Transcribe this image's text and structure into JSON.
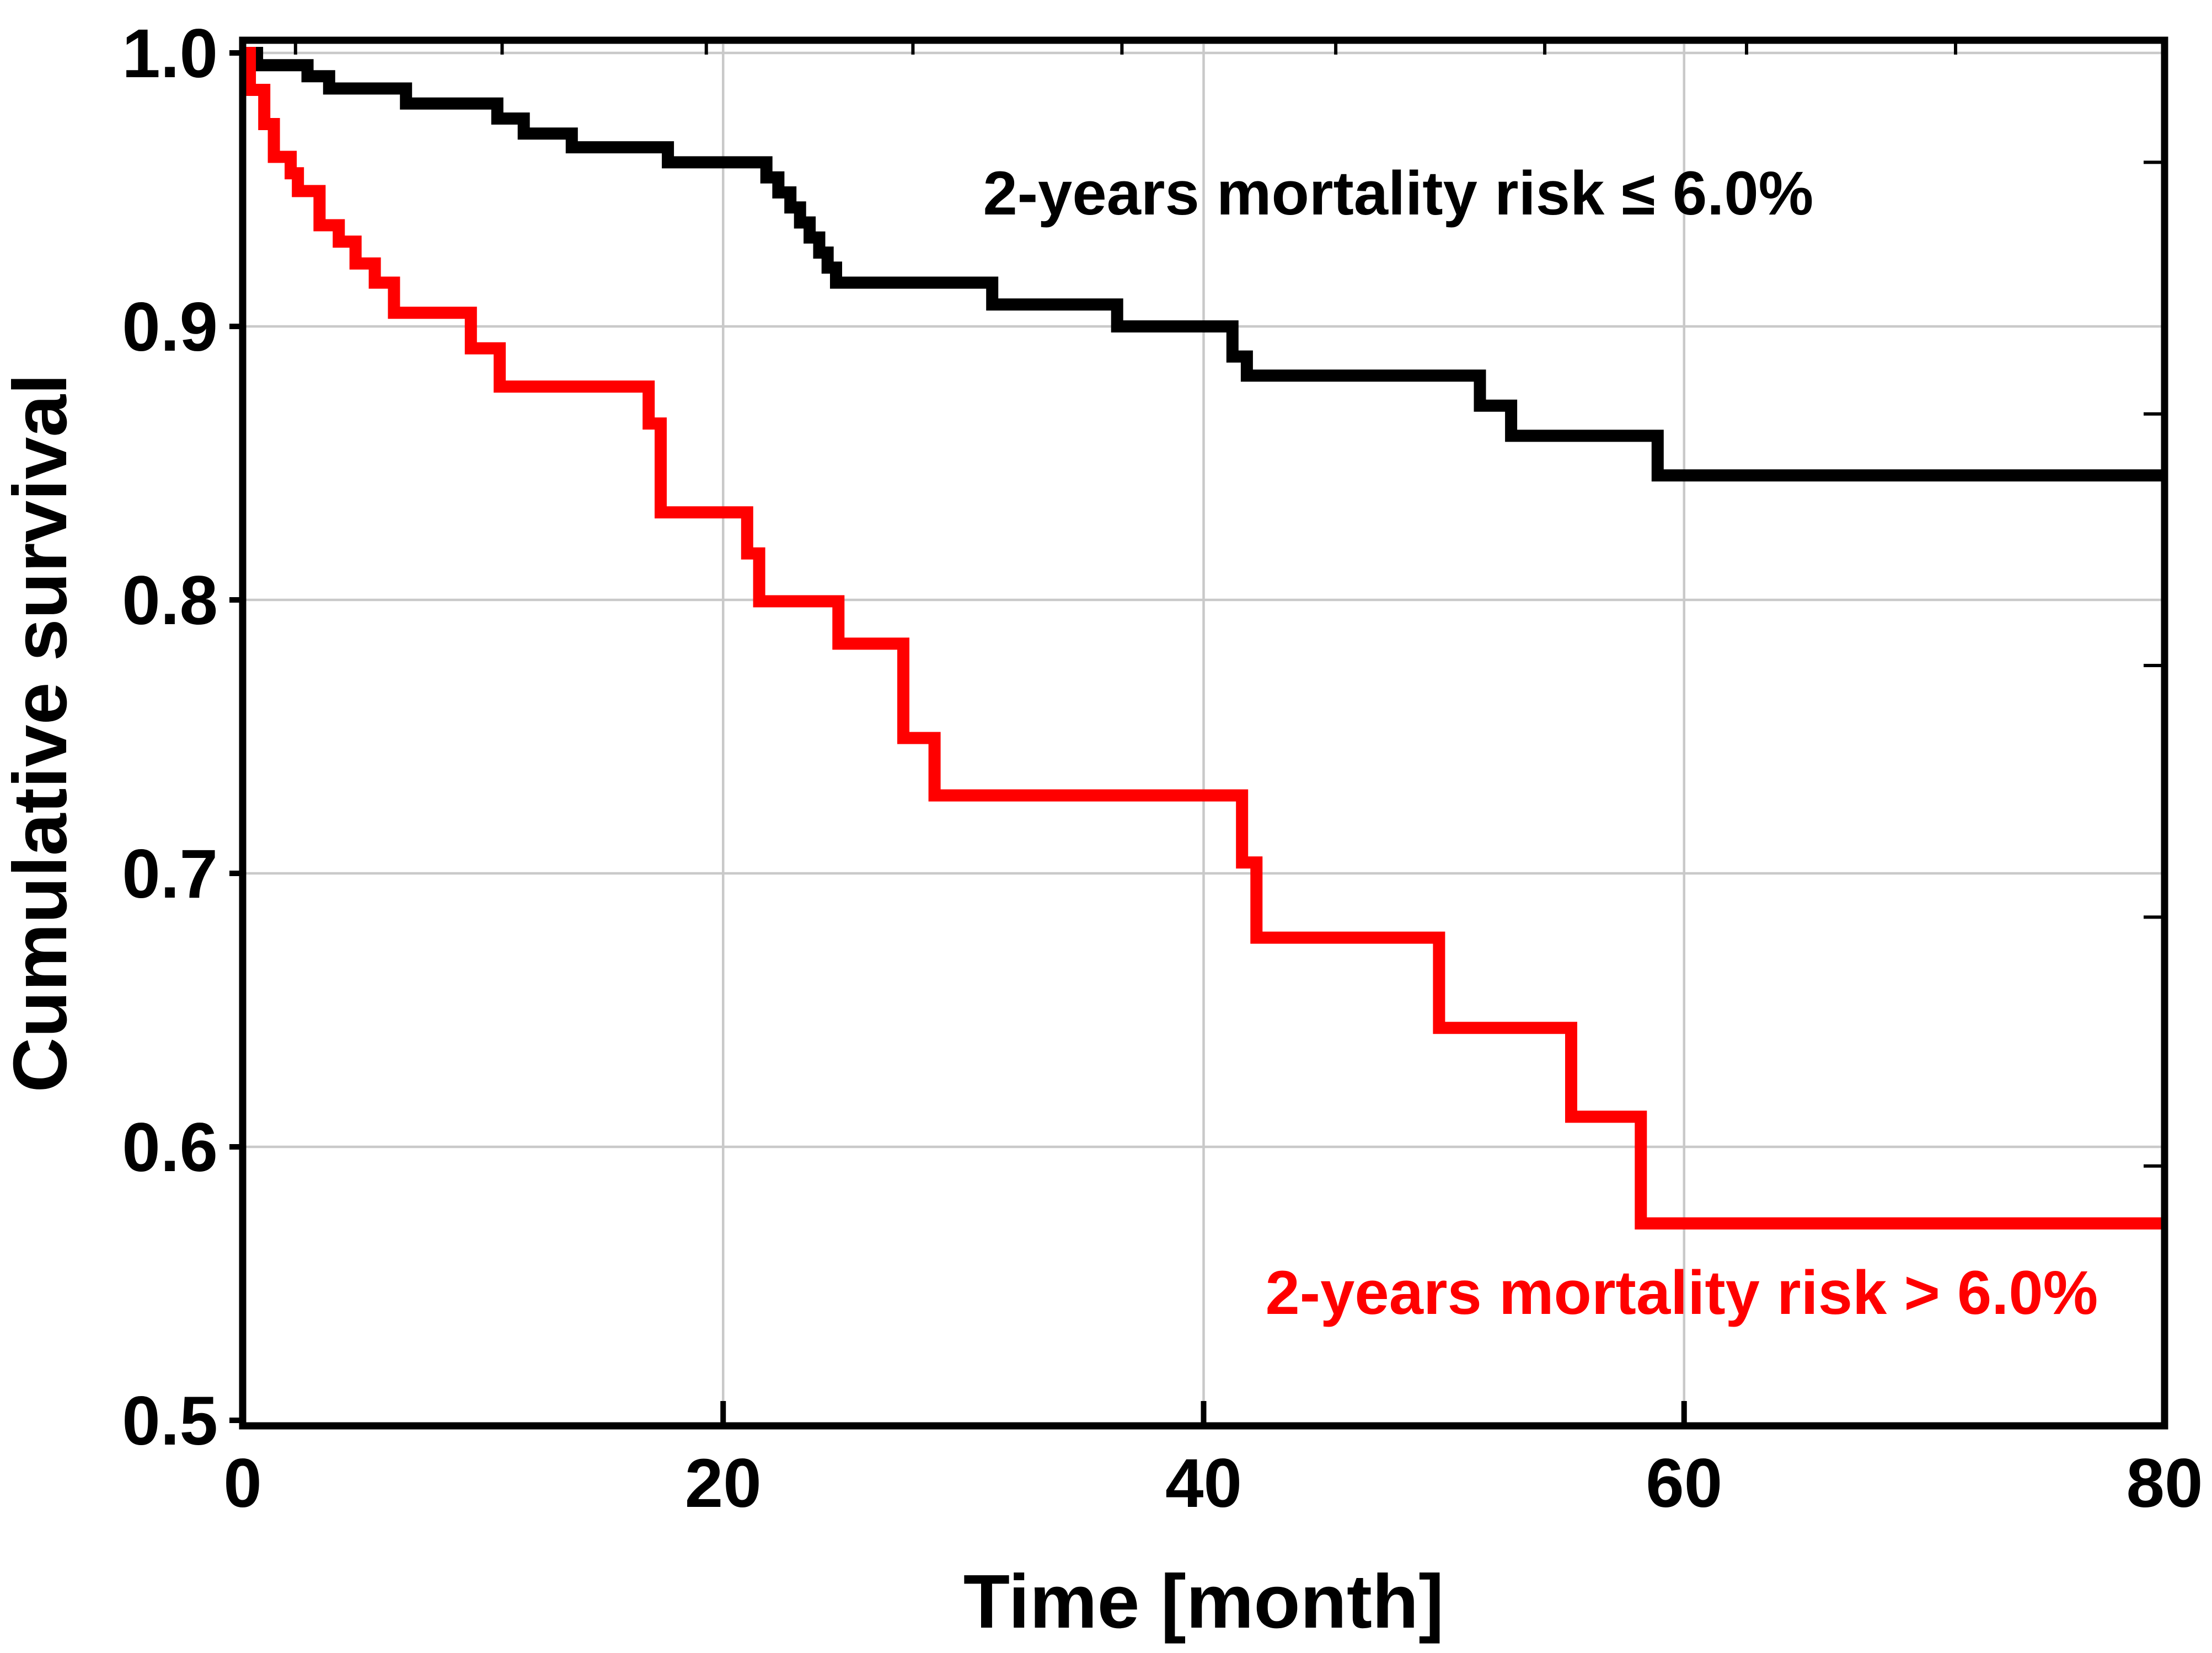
{
  "chart_data": {
    "type": "line",
    "step": true,
    "title": "",
    "xlabel": "Time [month]",
    "ylabel": "Cumulative survival",
    "xlim": [
      0,
      80
    ],
    "ylim": [
      0.5,
      1.0
    ],
    "grid": true,
    "legend_position": "none",
    "x_ticks": {
      "values": [
        0,
        20,
        40,
        60,
        80
      ],
      "labels": [
        "0",
        "20",
        "40",
        "60",
        "80"
      ]
    },
    "y_ticks": {
      "values": [
        1.0,
        0.9,
        0.8,
        0.7,
        0.6,
        0.5
      ],
      "labels": [
        "1.0",
        "0.9",
        "0.8",
        "0.7",
        "0.6",
        "0.5"
      ]
    },
    "x_gridlines": [
      20,
      40,
      60
    ],
    "y_gridlines": [
      1.0,
      0.9,
      0.8,
      0.7,
      0.6
    ],
    "top_minor_ticks_months": [
      2.2,
      10.8,
      19.3,
      27.9,
      36.6,
      45.5,
      54.2,
      62.6,
      71.3
    ],
    "right_minor_ticks_values": [
      0.96,
      0.868,
      0.776,
      0.684,
      0.593
    ],
    "colors": {
      "low_risk": "#000000",
      "high_risk": "#ff0000",
      "gridline": "#c9c9c9",
      "axis": "#000000",
      "background": "#ffffff"
    },
    "series": [
      {
        "name": "2-years mortality risk ≤ 6.0%",
        "color": "#000000",
        "points": [
          [
            0,
            1.0
          ],
          [
            0.6,
            0.9955
          ],
          [
            2.7,
            0.9915
          ],
          [
            3.6,
            0.987
          ],
          [
            6.8,
            0.9815
          ],
          [
            10.6,
            0.976
          ],
          [
            11.7,
            0.9705
          ],
          [
            13.7,
            0.9655
          ],
          [
            17.7,
            0.96
          ],
          [
            21.8,
            0.9545
          ],
          [
            22.3,
            0.949
          ],
          [
            22.8,
            0.9435
          ],
          [
            23.2,
            0.938
          ],
          [
            23.6,
            0.9325
          ],
          [
            24.0,
            0.927
          ],
          [
            24.35,
            0.9215
          ],
          [
            24.7,
            0.916
          ],
          [
            31.2,
            0.908
          ],
          [
            36.4,
            0.9
          ],
          [
            41.2,
            0.889
          ],
          [
            41.8,
            0.882
          ],
          [
            51.5,
            0.871
          ],
          [
            52.8,
            0.86
          ],
          [
            58.9,
            0.8455
          ],
          [
            80,
            0.8455
          ]
        ]
      },
      {
        "name": "2-years mortality risk > 6.0%",
        "color": "#ff0000",
        "points": [
          [
            0,
            1.0
          ],
          [
            0.3,
            0.9865
          ],
          [
            0.9,
            0.974
          ],
          [
            1.3,
            0.962
          ],
          [
            2.0,
            0.956
          ],
          [
            2.3,
            0.9495
          ],
          [
            3.2,
            0.937
          ],
          [
            4.0,
            0.931
          ],
          [
            4.7,
            0.923
          ],
          [
            5.5,
            0.916
          ],
          [
            6.3,
            0.905
          ],
          [
            9.5,
            0.892
          ],
          [
            10.7,
            0.878
          ],
          [
            16.9,
            0.8645
          ],
          [
            17.4,
            0.832
          ],
          [
            21.0,
            0.817
          ],
          [
            21.5,
            0.7995
          ],
          [
            24.8,
            0.784
          ],
          [
            27.5,
            0.7495
          ],
          [
            28.8,
            0.7285
          ],
          [
            41.6,
            0.704
          ],
          [
            42.2,
            0.6765
          ],
          [
            49.8,
            0.6435
          ],
          [
            55.3,
            0.611
          ],
          [
            58.2,
            0.572
          ],
          [
            80,
            0.572
          ]
        ]
      }
    ],
    "annotations": [
      {
        "text": "2-years mortality risk ≤ 6.0%",
        "color": "#000000",
        "x_month": 48.1,
        "y_value": 0.949
      },
      {
        "text": "2-years mortality risk > 6.0%",
        "color": "#ff0000",
        "x_month": 59.9,
        "y_value": 0.547
      }
    ]
  }
}
